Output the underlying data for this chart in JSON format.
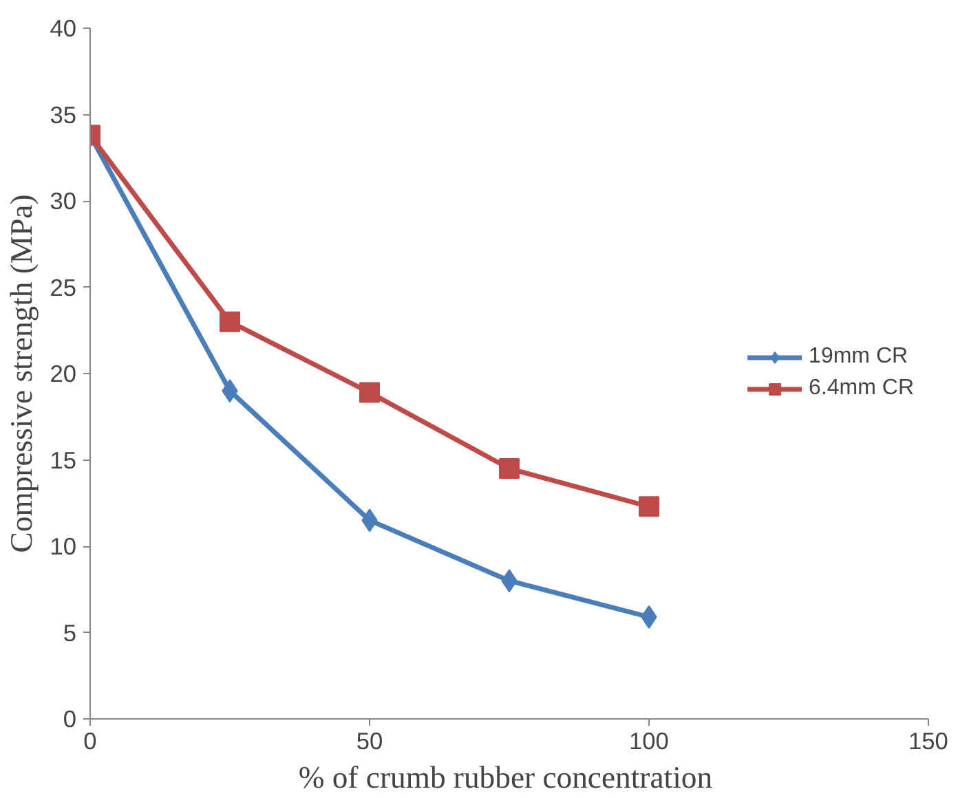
{
  "chart_data": {
    "type": "line",
    "xlabel": "%  of crumb rubber concentration",
    "ylabel": "Compressive strength (MPa)",
    "x": [
      0,
      25,
      50,
      75,
      100
    ],
    "series": [
      {
        "name": "19mm CR",
        "color": "#4a7ebb",
        "marker": "diamond",
        "values": [
          33.8,
          19.0,
          11.5,
          8.0,
          5.9
        ]
      },
      {
        "name": "6.4mm CR",
        "color": "#be4b48",
        "marker": "square",
        "values": [
          33.8,
          23.0,
          18.9,
          14.5,
          12.3
        ]
      }
    ],
    "xlim": [
      0,
      150
    ],
    "xticks": [
      0,
      50,
      100,
      150
    ],
    "ylim": [
      0,
      40
    ],
    "yticks": [
      0,
      5,
      10,
      15,
      20,
      25,
      30,
      35,
      40
    ],
    "grid": false,
    "legend": "right",
    "line_style": "solid"
  }
}
